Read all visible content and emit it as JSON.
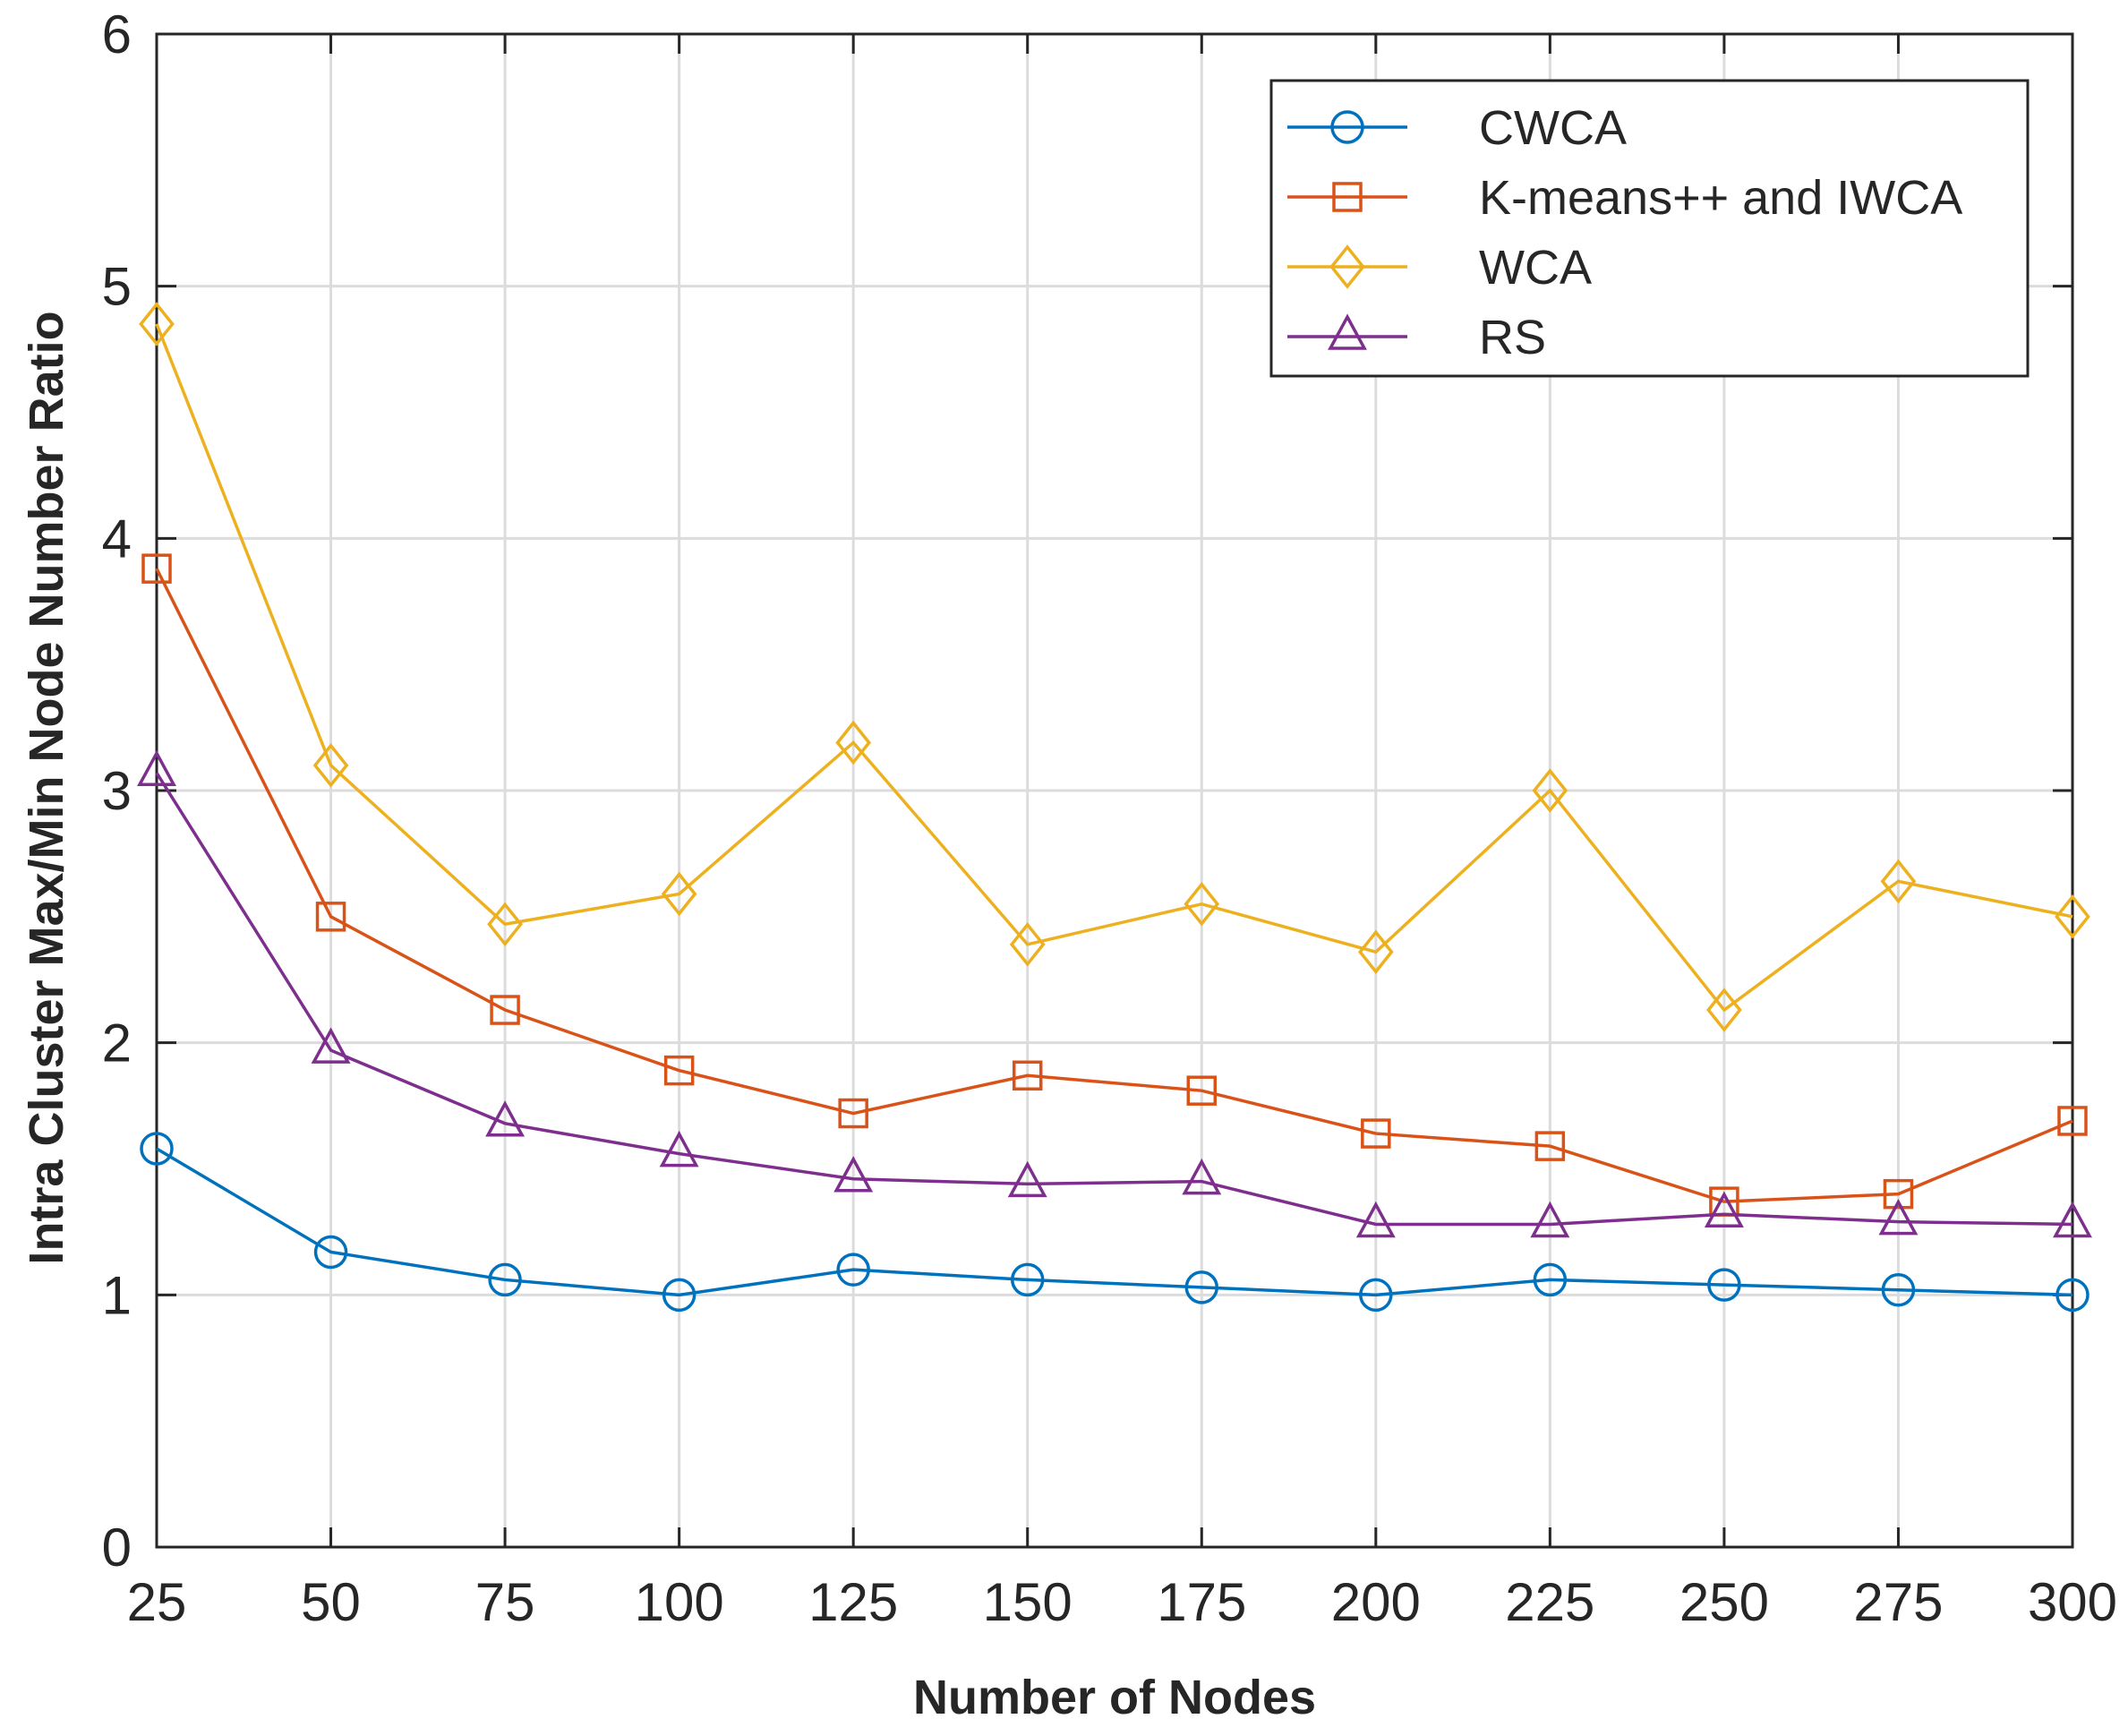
{
  "chart_data": {
    "type": "line",
    "title": "",
    "xlabel": "Number of Nodes",
    "ylabel": "Intra Cluster Max/Min Node Number Ratio",
    "xlim": [
      25,
      300
    ],
    "ylim": [
      0,
      6
    ],
    "x": [
      25,
      50,
      75,
      100,
      125,
      150,
      175,
      200,
      225,
      250,
      275,
      300
    ],
    "xticks": [
      "25",
      "50",
      "75",
      "100",
      "125",
      "150",
      "175",
      "200",
      "225",
      "250",
      "275",
      "300"
    ],
    "yticks": [
      "0",
      "1",
      "2",
      "3",
      "4",
      "5",
      "6"
    ],
    "grid": true,
    "legend_position": "top-right",
    "series": [
      {
        "name": "CWCA",
        "color": "#0072BD",
        "marker": "circle",
        "values": [
          1.58,
          1.17,
          1.06,
          1.0,
          1.1,
          1.06,
          1.03,
          1.0,
          1.06,
          1.04,
          1.02,
          1.0
        ]
      },
      {
        "name": "K-means++ and IWCA",
        "color": "#D95319",
        "marker": "square",
        "values": [
          3.88,
          2.5,
          2.13,
          1.89,
          1.72,
          1.87,
          1.81,
          1.64,
          1.59,
          1.37,
          1.4,
          1.69
        ]
      },
      {
        "name": "WCA",
        "color": "#EDB120",
        "marker": "diamond",
        "values": [
          4.85,
          3.1,
          2.47,
          2.59,
          3.19,
          2.39,
          2.55,
          2.36,
          3.0,
          2.13,
          2.64,
          2.5
        ]
      },
      {
        "name": "RS",
        "color": "#7E2F8E",
        "marker": "triangle",
        "values": [
          3.07,
          1.97,
          1.68,
          1.56,
          1.46,
          1.44,
          1.45,
          1.28,
          1.28,
          1.32,
          1.29,
          1.28
        ]
      }
    ]
  }
}
